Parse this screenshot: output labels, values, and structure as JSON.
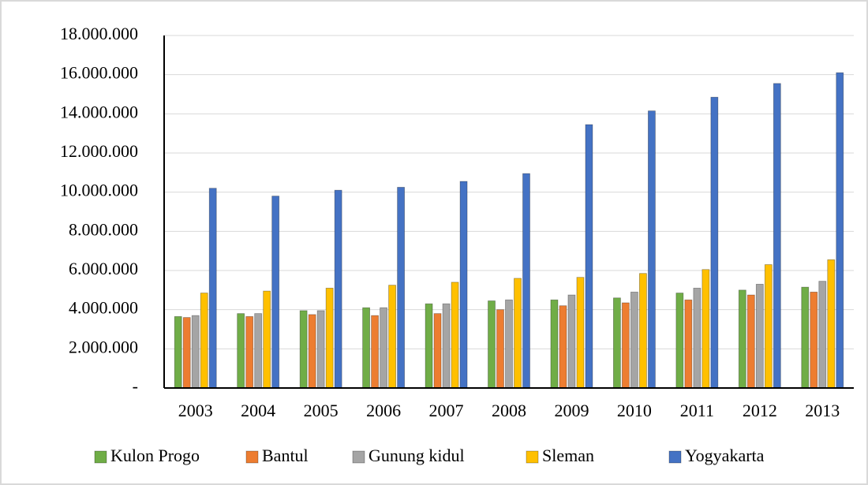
{
  "chart_data": {
    "type": "bar",
    "categories": [
      "2003",
      "2004",
      "2005",
      "2006",
      "2007",
      "2008",
      "2009",
      "2010",
      "2011",
      "2012",
      "2013"
    ],
    "series": [
      {
        "name": "Kulon Progo",
        "color": "#70ad47",
        "values": [
          3650000,
          3800000,
          3950000,
          4100000,
          4300000,
          4450000,
          4500000,
          4600000,
          4850000,
          5000000,
          5150000
        ]
      },
      {
        "name": "Bantul",
        "color": "#ed7d31",
        "values": [
          3600000,
          3650000,
          3750000,
          3700000,
          3800000,
          4000000,
          4200000,
          4350000,
          4500000,
          4750000,
          4900000
        ]
      },
      {
        "name": "Gunung kidul",
        "color": "#a5a5a5",
        "values": [
          3700000,
          3800000,
          3950000,
          4100000,
          4300000,
          4500000,
          4750000,
          4900000,
          5100000,
          5300000,
          5450000
        ]
      },
      {
        "name": "Sleman",
        "color": "#ffc000",
        "values": [
          4850000,
          4950000,
          5100000,
          5250000,
          5400000,
          5600000,
          5650000,
          5850000,
          6050000,
          6300000,
          6550000
        ]
      },
      {
        "name": "Yogyakarta",
        "color": "#4472c4",
        "values": [
          10200000,
          9800000,
          10100000,
          10250000,
          10550000,
          10950000,
          13450000,
          14150000,
          14850000,
          15550000,
          16100000
        ]
      }
    ],
    "ylim": [
      0,
      18000000
    ],
    "yticks": [
      {
        "value": 0,
        "label": "-"
      },
      {
        "value": 2000000,
        "label": "2.000.000"
      },
      {
        "value": 4000000,
        "label": "4.000.000"
      },
      {
        "value": 6000000,
        "label": "6.000.000"
      },
      {
        "value": 8000000,
        "label": "8.000.000"
      },
      {
        "value": 10000000,
        "label": "10.000.000"
      },
      {
        "value": 12000000,
        "label": "12.000.000"
      },
      {
        "value": 14000000,
        "label": "14.000.000"
      },
      {
        "value": 16000000,
        "label": "16.000.000"
      },
      {
        "value": 18000000,
        "label": "18.000.000"
      }
    ],
    "grid": true,
    "legend": "bottom"
  }
}
